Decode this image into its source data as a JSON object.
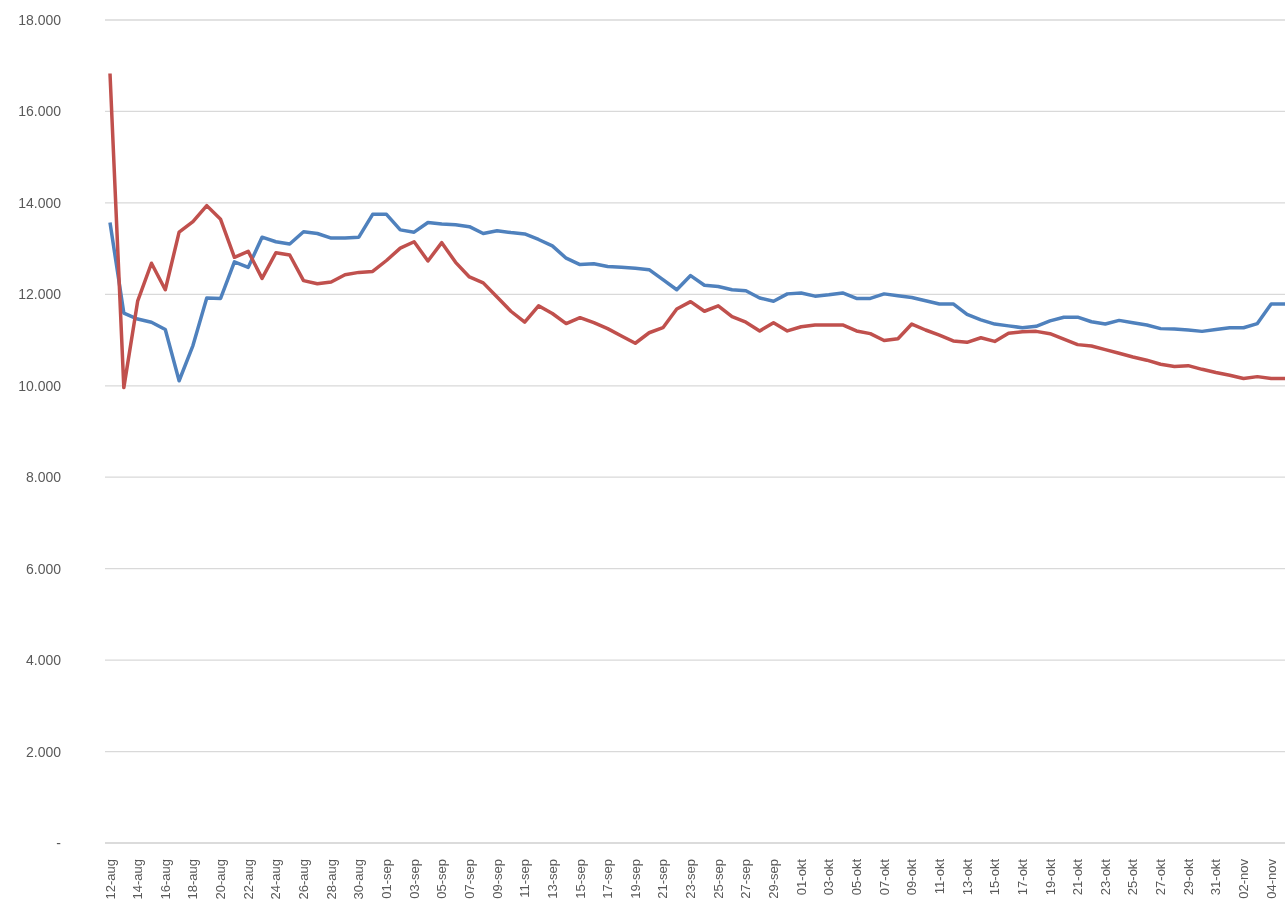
{
  "chart_data": {
    "type": "line",
    "categories": [
      "12-aug",
      null,
      "14-aug",
      null,
      "16-aug",
      null,
      "18-aug",
      null,
      "20-aug",
      null,
      "22-aug",
      null,
      "24-aug",
      null,
      "26-aug",
      null,
      "28-aug",
      null,
      "30-aug",
      null,
      "01-sep",
      null,
      "03-sep",
      null,
      "05-sep",
      null,
      "07-sep",
      null,
      "09-sep",
      null,
      "11-sep",
      null,
      "13-sep",
      null,
      "15-sep",
      null,
      "17-sep",
      null,
      "19-sep",
      null,
      "21-sep",
      null,
      "23-sep",
      null,
      "25-sep",
      null,
      "27-sep",
      null,
      "29-sep",
      null,
      "01-okt",
      null,
      "03-okt",
      null,
      "05-okt",
      null,
      "07-okt",
      null,
      "09-okt",
      null,
      "11-okt",
      null,
      "13-okt",
      null,
      "15-okt",
      null,
      "17-okt",
      null,
      "19-okt",
      null,
      "21-okt",
      null,
      "23-okt",
      null,
      "25-okt",
      null,
      "27-okt",
      null,
      "29-okt",
      null,
      "31-okt",
      null,
      "02-nov",
      null,
      "04-nov",
      null
    ],
    "series": [
      {
        "color": "#4f81bd",
        "values": [
          13570,
          11590,
          11460,
          11390,
          11230,
          10110,
          10880,
          11920,
          11910,
          12710,
          12590,
          13250,
          13150,
          13100,
          13370,
          13330,
          13230,
          13230,
          13250,
          13750,
          13750,
          13410,
          13360,
          13570,
          13540,
          13520,
          13480,
          13330,
          13390,
          13350,
          13320,
          13200,
          13060,
          12790,
          12650,
          12670,
          12610,
          12590,
          12570,
          12540,
          12320,
          12100,
          12410,
          12200,
          12170,
          12100,
          12080,
          11920,
          11850,
          12010,
          12030,
          11960,
          11990,
          12030,
          11910,
          11910,
          12010,
          11970,
          11930,
          11860,
          11790,
          11790,
          11560,
          11440,
          11350,
          11310,
          11270,
          11300,
          11420,
          11500,
          11500,
          11400,
          11350,
          11430,
          11380,
          11330,
          11250,
          11240,
          11220,
          11190,
          11230,
          11270,
          11270,
          11360,
          11790,
          11790
        ]
      },
      {
        "color": "#c0504d",
        "values": [
          16830,
          9960,
          11850,
          12680,
          12100,
          13360,
          13590,
          13940,
          13640,
          12810,
          12940,
          12350,
          12910,
          12860,
          12300,
          12230,
          12270,
          12430,
          12480,
          12500,
          12740,
          13010,
          13150,
          12730,
          13130,
          12700,
          12380,
          12250,
          11940,
          11630,
          11390,
          11750,
          11580,
          11360,
          11490,
          11380,
          11250,
          11090,
          10930,
          11160,
          11270,
          11680,
          11840,
          11630,
          11750,
          11510,
          11390,
          11200,
          11380,
          11200,
          11290,
          11330,
          11330,
          11330,
          11200,
          11140,
          10990,
          11030,
          11350,
          11220,
          11110,
          10980,
          10950,
          11050,
          10970,
          11150,
          11180,
          11190,
          11140,
          11020,
          10900,
          10870,
          10790,
          10710,
          10630,
          10560,
          10470,
          10420,
          10440,
          10360,
          10290,
          10230,
          10160,
          10200,
          10160,
          10160
        ]
      }
    ],
    "ylim": [
      0,
      18000
    ],
    "yticks": [
      {
        "value": 0,
        "label": "-"
      },
      {
        "value": 2000,
        "label": "2.000"
      },
      {
        "value": 4000,
        "label": "4.000"
      },
      {
        "value": 6000,
        "label": "6.000"
      },
      {
        "value": 8000,
        "label": "8.000"
      },
      {
        "value": 10000,
        "label": "10.000"
      },
      {
        "value": 12000,
        "label": "12.000"
      },
      {
        "value": 14000,
        "label": "14.000"
      },
      {
        "value": 16000,
        "label": "16.000"
      },
      {
        "value": 18000,
        "label": "18.000"
      }
    ],
    "grid": "y",
    "legend": false,
    "marker": "none",
    "line_style": "solid"
  }
}
